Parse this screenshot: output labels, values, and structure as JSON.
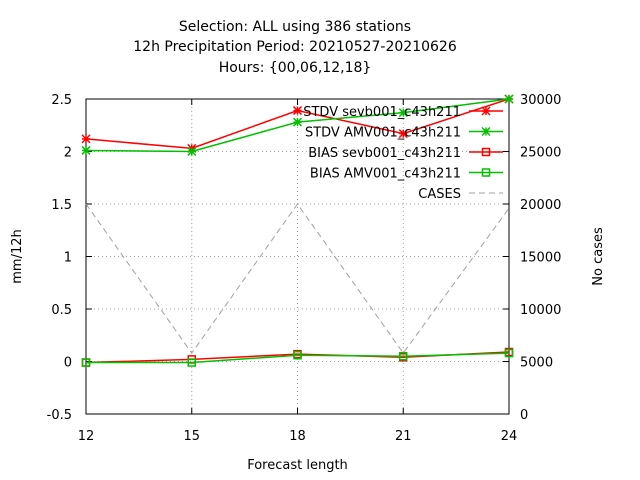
{
  "chart_data": {
    "type": "line",
    "title": [
      "Selection: ALL using   386 stations",
      "12h Precipitation    Period: 20210527-20210626",
      "Hours: {00,06,12,18}"
    ],
    "xlabel": "Forecast length",
    "ylabel": "mm/12h",
    "y2label": "No cases",
    "x": [
      12,
      15,
      18,
      21,
      24
    ],
    "xticks": [
      "12",
      "15",
      "18",
      "21",
      "24"
    ],
    "ylim": [
      -0.5,
      2.5
    ],
    "yticks": [
      "-0.5",
      "0",
      "0.5",
      "1",
      "1.5",
      "2",
      "2.5"
    ],
    "y2lim": [
      0,
      30000
    ],
    "y2ticks": [
      "0",
      "5000",
      "10000",
      "15000",
      "20000",
      "25000",
      "30000"
    ],
    "grid": true,
    "legend_position": "top-right",
    "series": [
      {
        "name": "STDV sevb001_c43h211",
        "axis": "y",
        "color": "#ff0000",
        "marker": "star",
        "dash": "solid",
        "values": [
          2.12,
          2.03,
          2.39,
          2.17,
          2.5
        ]
      },
      {
        "name": "STDV AMV001_c43h211",
        "axis": "y",
        "color": "#00c000",
        "marker": "star",
        "dash": "solid",
        "values": [
          2.01,
          2.0,
          2.28,
          2.37,
          2.5
        ]
      },
      {
        "name": "BIAS sevb001_c43h211",
        "axis": "y",
        "color": "#ff0000",
        "marker": "square",
        "dash": "solid",
        "values": [
          -0.01,
          0.02,
          0.07,
          0.04,
          0.09
        ]
      },
      {
        "name": "BIAS AMV001_c43h211",
        "axis": "y",
        "color": "#00c000",
        "marker": "square",
        "dash": "solid",
        "values": [
          -0.01,
          -0.01,
          0.06,
          0.05,
          0.08
        ]
      },
      {
        "name": "CASES",
        "axis": "y2",
        "color": "#a0a0a0",
        "marker": "none",
        "dash": "dashed",
        "values": [
          20000,
          5800,
          20000,
          5800,
          19600
        ]
      }
    ]
  }
}
